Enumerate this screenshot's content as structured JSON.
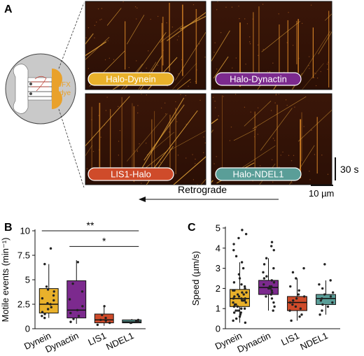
{
  "panel_letters": {
    "a": "A",
    "b": "B",
    "c": "C"
  },
  "panel_a": {
    "device": {
      "dye_label_line1": "JFX",
      "dye_label_line2": "dye"
    },
    "kymographs": [
      {
        "label": "Halo-Dynein",
        "color": "#e9b12b",
        "text_color": "#ffffff"
      },
      {
        "label": "Halo-Dynactin",
        "color": "#7c2a8e",
        "text_color": "#ffffff"
      },
      {
        "label": "LIS1-Halo",
        "color": "#cf4b2a",
        "text_color": "#ffffff"
      },
      {
        "label": "Halo-NDEL1",
        "color": "#5a9e98",
        "text_color": "#ffffff"
      }
    ],
    "time_scale": "30 s",
    "length_scale": "10 µm",
    "direction_label": "Retrograde"
  },
  "chart_data": [
    {
      "type": "box",
      "panel": "B",
      "ylabel": "Motile events (min⁻¹)",
      "ylim": [
        0,
        10
      ],
      "yticks": [
        "0",
        "2.5",
        "5",
        "7.5",
        "10"
      ],
      "categories": [
        "Dynein",
        "Dynactin",
        "LIS1",
        "NDEL1"
      ],
      "colors": [
        "#e9b12b",
        "#7c2a8e",
        "#cf4b2a",
        "#5a9e98"
      ],
      "boxes": [
        {
          "min": 1.1,
          "q1": 1.6,
          "median": 2.5,
          "q3": 4.1,
          "max": 6.6
        },
        {
          "min": 0.5,
          "q1": 1.1,
          "median": 1.9,
          "q3": 4.9,
          "max": 7.0
        },
        {
          "min": 0.3,
          "q1": 0.6,
          "median": 0.9,
          "q3": 1.5,
          "max": 2.4
        },
        {
          "min": 0.5,
          "q1": 0.6,
          "median": 0.7,
          "q3": 0.9,
          "max": 1.0
        }
      ],
      "points": [
        [
          1.1,
          1.3,
          1.5,
          1.7,
          2.0,
          2.2,
          2.5,
          2.6,
          2.9,
          3.1,
          3.4,
          3.8,
          4.0,
          4.3,
          6.6,
          8.2
        ],
        [
          0.7,
          1.0,
          1.3,
          1.6,
          1.9,
          2.3,
          3.0,
          3.8,
          4.6,
          6.8
        ],
        [
          0.4,
          0.6,
          0.8,
          0.9,
          1.1,
          1.4,
          2.3
        ],
        [
          0.6,
          0.7,
          0.8,
          0.9
        ]
      ],
      "significance": [
        {
          "from": "Dynein",
          "to": "NDEL1",
          "label": "**",
          "y": 10.0
        },
        {
          "from": "Dynactin",
          "to": "NDEL1",
          "label": "*",
          "y": 8.4
        }
      ]
    },
    {
      "type": "box",
      "panel": "C",
      "ylabel": "Speed (µm/s)",
      "ylim": [
        0,
        5
      ],
      "yticks": [
        "0",
        "1",
        "2",
        "3",
        "4",
        "5"
      ],
      "categories": [
        "Dynein",
        "Dynactin",
        "LIS1",
        "NDEL1"
      ],
      "colors": [
        "#e9b12b",
        "#7c2a8e",
        "#cf4b2a",
        "#5a9e98"
      ],
      "boxes": [
        {
          "min": 0.3,
          "q1": 1.1,
          "median": 1.5,
          "q3": 1.95,
          "max": 3.3
        },
        {
          "min": 0.9,
          "q1": 1.7,
          "median": 2.05,
          "q3": 2.4,
          "max": 3.5
        },
        {
          "min": 0.4,
          "q1": 0.9,
          "median": 1.3,
          "q3": 1.6,
          "max": 2.5
        },
        {
          "min": 0.7,
          "q1": 1.2,
          "median": 1.5,
          "q3": 1.7,
          "max": 2.4
        }
      ],
      "points": [
        [
          0.3,
          0.4,
          0.5,
          0.6,
          0.7,
          0.8,
          0.8,
          0.9,
          0.9,
          1.0,
          1.0,
          1.1,
          1.1,
          1.2,
          1.2,
          1.3,
          1.3,
          1.4,
          1.4,
          1.4,
          1.5,
          1.5,
          1.5,
          1.6,
          1.6,
          1.7,
          1.7,
          1.8,
          1.8,
          1.9,
          1.9,
          2.0,
          2.1,
          2.2,
          2.3,
          2.5,
          2.7,
          3.0,
          3.3,
          3.6,
          3.9,
          4.2,
          4.5,
          4.7,
          4.9
        ],
        [
          0.9,
          1.1,
          1.3,
          1.5,
          1.6,
          1.7,
          1.8,
          1.9,
          2.0,
          2.0,
          2.1,
          2.1,
          2.2,
          2.3,
          2.4,
          2.5,
          2.6,
          2.8,
          3.0,
          3.2,
          3.5,
          3.9,
          4.1,
          4.3
        ],
        [
          0.4,
          0.6,
          0.7,
          0.9,
          1.0,
          1.1,
          1.2,
          1.3,
          1.4,
          1.5,
          1.6,
          1.7,
          1.9,
          2.1,
          2.5,
          2.8,
          3.0
        ],
        [
          0.7,
          0.9,
          1.1,
          1.2,
          1.3,
          1.4,
          1.5,
          1.6,
          1.7,
          1.8,
          2.0,
          2.2,
          2.4,
          3.2
        ]
      ]
    }
  ]
}
